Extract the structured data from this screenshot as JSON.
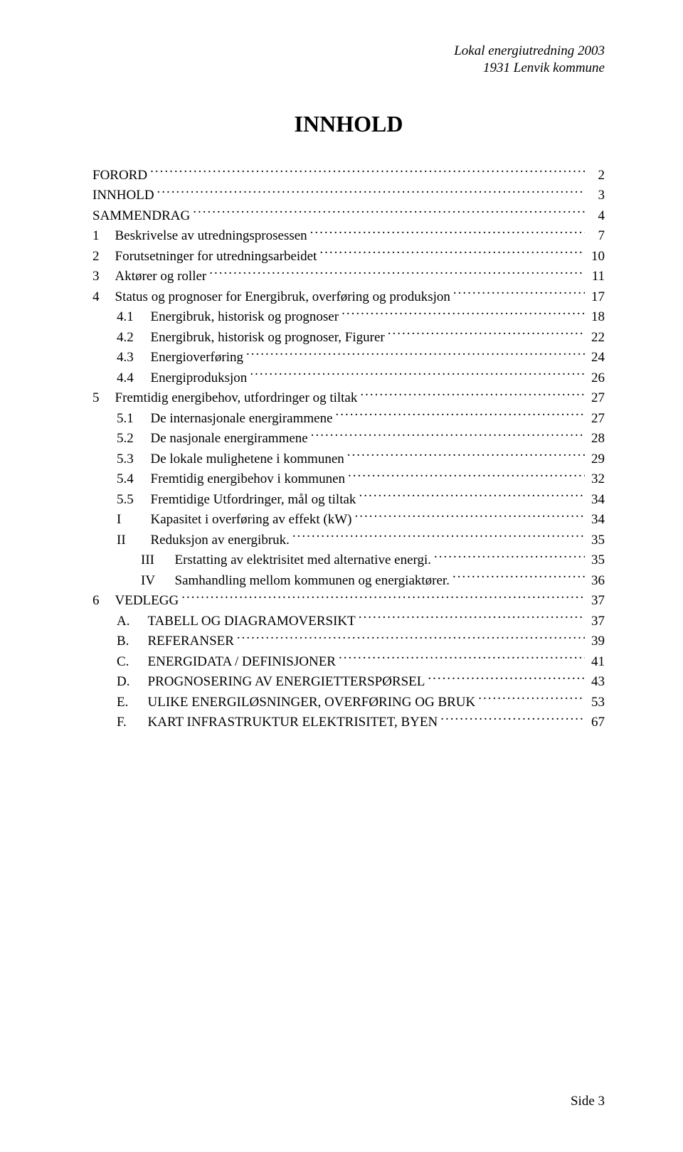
{
  "header": {
    "line1": "Lokal energiutredning 2003",
    "line2": "1931 Lenvik kommune"
  },
  "title": "INNHOLD",
  "toc": [
    {
      "level": 0,
      "num": "",
      "label": "FORORD",
      "page": "2"
    },
    {
      "level": 0,
      "num": "",
      "label": "INNHOLD",
      "page": "3"
    },
    {
      "level": 0,
      "num": "",
      "label": "SAMMENDRAG",
      "page": "4"
    },
    {
      "level": 0,
      "num": "1",
      "label": "Beskrivelse av utredningsprosessen",
      "page": "7"
    },
    {
      "level": 0,
      "num": "2",
      "label": "Forutsetninger for utredningsarbeidet",
      "page": "10"
    },
    {
      "level": 0,
      "num": "3",
      "label": "Aktører og roller",
      "page": "11"
    },
    {
      "level": 0,
      "num": "4",
      "label": "Status og prognoser for Energibruk, overføring og produksjon",
      "page": "17"
    },
    {
      "level": 1,
      "num": "4.1",
      "label": "Energibruk, historisk og prognoser",
      "page": "18"
    },
    {
      "level": 1,
      "num": "4.2",
      "label": "Energibruk, historisk og prognoser, Figurer",
      "page": "22"
    },
    {
      "level": 1,
      "num": "4.3",
      "label": "Energioverføring",
      "page": "24"
    },
    {
      "level": 1,
      "num": "4.4",
      "label": "Energiproduksjon",
      "page": "26"
    },
    {
      "level": 0,
      "num": "5",
      "label": "Fremtidig energibehov, utfordringer og tiltak",
      "page": "27"
    },
    {
      "level": 1,
      "num": "5.1",
      "label": "De internasjonale energirammene",
      "page": "27"
    },
    {
      "level": 1,
      "num": "5.2",
      "label": "De nasjonale energirammene",
      "page": "28"
    },
    {
      "level": 1,
      "num": "5.3",
      "label": "De lokale mulighetene i kommunen",
      "page": "29"
    },
    {
      "level": 1,
      "num": "5.4",
      "label": "Fremtidig energibehov i kommunen",
      "page": "32"
    },
    {
      "level": 1,
      "num": "5.5",
      "label": "Fremtidige Utfordringer, mål og tiltak",
      "page": "34"
    },
    {
      "level": 1,
      "num": "I",
      "roman": true,
      "label": "Kapasitet i overføring av effekt (kW)",
      "page": "34"
    },
    {
      "level": 1,
      "num": "II",
      "roman": true,
      "label": "Reduksjon av energibruk.",
      "page": "35"
    },
    {
      "level": 2,
      "num": "III",
      "roman": true,
      "label": "Erstatting av elektrisitet med alternative energi.",
      "page": "35"
    },
    {
      "level": 2,
      "num": "IV",
      "roman": true,
      "label": "Samhandling mellom kommunen og energiaktører.",
      "page": "36"
    },
    {
      "level": 0,
      "num": "6",
      "label": "VEDLEGG",
      "page": "37"
    },
    {
      "level": 1,
      "num": "A.",
      "letter": true,
      "label": "TABELL OG DIAGRAMOVERSIKT",
      "page": "37"
    },
    {
      "level": 1,
      "num": "B.",
      "letter": true,
      "label": "REFERANSER",
      "page": "39"
    },
    {
      "level": 1,
      "num": "C.",
      "letter": true,
      "label": "ENERGIDATA / DEFINISJONER",
      "page": "41"
    },
    {
      "level": 1,
      "num": "D.",
      "letter": true,
      "label": "PROGNOSERING AV ENERGIETTERSPØRSEL",
      "page": "43"
    },
    {
      "level": 1,
      "num": "E.",
      "letter": true,
      "label": "ULIKE ENERGILØSNINGER, OVERFØRING OG BRUK",
      "page": "53"
    },
    {
      "level": 1,
      "num": "F.",
      "letter": true,
      "label": "KART INFRASTRUKTUR ELEKTRISITET, BYEN",
      "page": "67"
    }
  ],
  "footer": {
    "page_label": "Side 3"
  }
}
